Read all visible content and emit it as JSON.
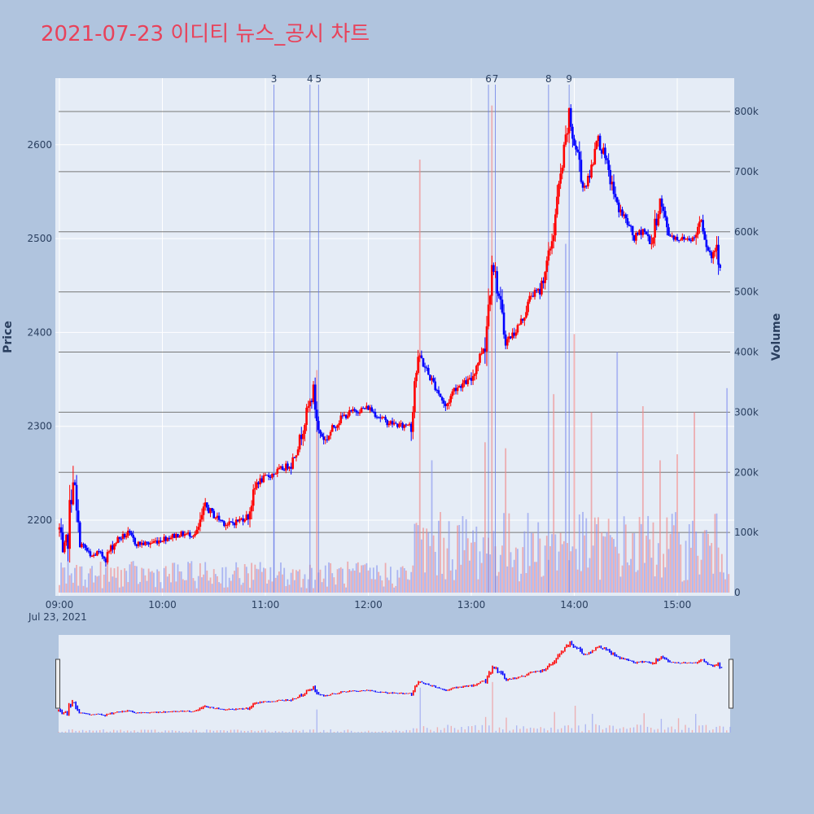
{
  "chart_data": {
    "type": "candlestick",
    "title": "2021-07-23 이디티 뉴스_공시 차트",
    "ylabel": "Price",
    "y2label": "Volume",
    "x_ticks": [
      "09:00",
      "10:00",
      "11:00",
      "12:00",
      "13:00",
      "14:00",
      "15:00"
    ],
    "x_date_label": "Jul 23, 2021",
    "x_range": [
      "09:00",
      "15:30"
    ],
    "price_ticks": [
      2200,
      2300,
      2400,
      2500,
      2600
    ],
    "price_range": [
      2125,
      2655
    ],
    "volume_ticks": [
      "0",
      "100k",
      "200k",
      "300k",
      "400k",
      "500k",
      "600k",
      "700k",
      "800k"
    ],
    "volume_range": [
      0,
      860000
    ],
    "news_markers": [
      {
        "label": "3",
        "time": "11:05"
      },
      {
        "label": "4",
        "time": "11:26"
      },
      {
        "label": "5",
        "time": "11:31"
      },
      {
        "label": "6",
        "time": "13:10"
      },
      {
        "label": "7",
        "time": "13:14"
      },
      {
        "label": "8",
        "time": "13:45"
      },
      {
        "label": "9",
        "time": "13:57"
      }
    ],
    "up_color": "#ff0000",
    "down_color": "#0000ff",
    "price_path": [
      [
        "09:00",
        2190
      ],
      [
        "09:02",
        2160
      ],
      [
        "09:05",
        2185
      ],
      [
        "09:07",
        2230
      ],
      [
        "09:08",
        2250
      ],
      [
        "09:10",
        2205
      ],
      [
        "09:12",
        2175
      ],
      [
        "09:15",
        2170
      ],
      [
        "09:18",
        2160
      ],
      [
        "09:22",
        2165
      ],
      [
        "09:27",
        2160
      ],
      [
        "09:30",
        2170
      ],
      [
        "09:34",
        2180
      ],
      [
        "09:40",
        2185
      ],
      [
        "09:45",
        2175
      ],
      [
        "09:52",
        2175
      ],
      [
        "10:00",
        2180
      ],
      [
        "10:10",
        2185
      ],
      [
        "10:20",
        2185
      ],
      [
        "10:25",
        2215
      ],
      [
        "10:30",
        2205
      ],
      [
        "10:38",
        2195
      ],
      [
        "10:45",
        2200
      ],
      [
        "10:50",
        2205
      ],
      [
        "10:55",
        2240
      ],
      [
        "11:00",
        2245
      ],
      [
        "11:05",
        2250
      ],
      [
        "11:10",
        2255
      ],
      [
        "11:15",
        2260
      ],
      [
        "11:20",
        2285
      ],
      [
        "11:25",
        2320
      ],
      [
        "11:28",
        2335
      ],
      [
        "11:31",
        2295
      ],
      [
        "11:35",
        2285
      ],
      [
        "11:40",
        2300
      ],
      [
        "11:45",
        2310
      ],
      [
        "11:50",
        2315
      ],
      [
        "12:00",
        2320
      ],
      [
        "12:10",
        2305
      ],
      [
        "12:20",
        2300
      ],
      [
        "12:25",
        2305
      ],
      [
        "12:27",
        2350
      ],
      [
        "12:30",
        2375
      ],
      [
        "12:35",
        2355
      ],
      [
        "12:40",
        2340
      ],
      [
        "12:45",
        2320
      ],
      [
        "12:50",
        2340
      ],
      [
        "12:55",
        2345
      ],
      [
        "13:00",
        2350
      ],
      [
        "13:05",
        2375
      ],
      [
        "13:08",
        2390
      ],
      [
        "13:10",
        2430
      ],
      [
        "13:12",
        2480
      ],
      [
        "13:15",
        2450
      ],
      [
        "13:20",
        2390
      ],
      [
        "13:25",
        2400
      ],
      [
        "13:30",
        2415
      ],
      [
        "13:35",
        2440
      ],
      [
        "13:40",
        2445
      ],
      [
        "13:45",
        2480
      ],
      [
        "13:48",
        2510
      ],
      [
        "13:50",
        2540
      ],
      [
        "13:54",
        2590
      ],
      [
        "13:57",
        2630
      ],
      [
        "14:00",
        2600
      ],
      [
        "14:03",
        2585
      ],
      [
        "14:05",
        2555
      ],
      [
        "14:08",
        2560
      ],
      [
        "14:10",
        2575
      ],
      [
        "14:13",
        2610
      ],
      [
        "14:17",
        2590
      ],
      [
        "14:20",
        2570
      ],
      [
        "14:25",
        2535
      ],
      [
        "14:30",
        2520
      ],
      [
        "14:35",
        2500
      ],
      [
        "14:40",
        2510
      ],
      [
        "14:45",
        2495
      ],
      [
        "14:50",
        2540
      ],
      [
        "14:55",
        2505
      ],
      [
        "15:00",
        2500
      ],
      [
        "15:05",
        2500
      ],
      [
        "15:10",
        2500
      ],
      [
        "15:14",
        2525
      ],
      [
        "15:17",
        2495
      ],
      [
        "15:20",
        2480
      ],
      [
        "15:23",
        2495
      ],
      [
        "15:25",
        2470
      ]
    ],
    "volume_spikes": [
      [
        "11:05",
        300000
      ],
      [
        "11:30",
        370000
      ],
      [
        "12:30",
        720000
      ],
      [
        "12:37",
        220000
      ],
      [
        "13:08",
        250000
      ],
      [
        "13:12",
        810000
      ],
      [
        "13:20",
        240000
      ],
      [
        "13:48",
        330000
      ],
      [
        "13:55",
        580000
      ],
      [
        "14:00",
        430000
      ],
      [
        "14:10",
        300000
      ],
      [
        "14:25",
        400000
      ],
      [
        "14:40",
        310000
      ],
      [
        "14:50",
        220000
      ],
      [
        "15:00",
        230000
      ],
      [
        "15:10",
        300000
      ],
      [
        "15:29",
        340000
      ]
    ]
  }
}
